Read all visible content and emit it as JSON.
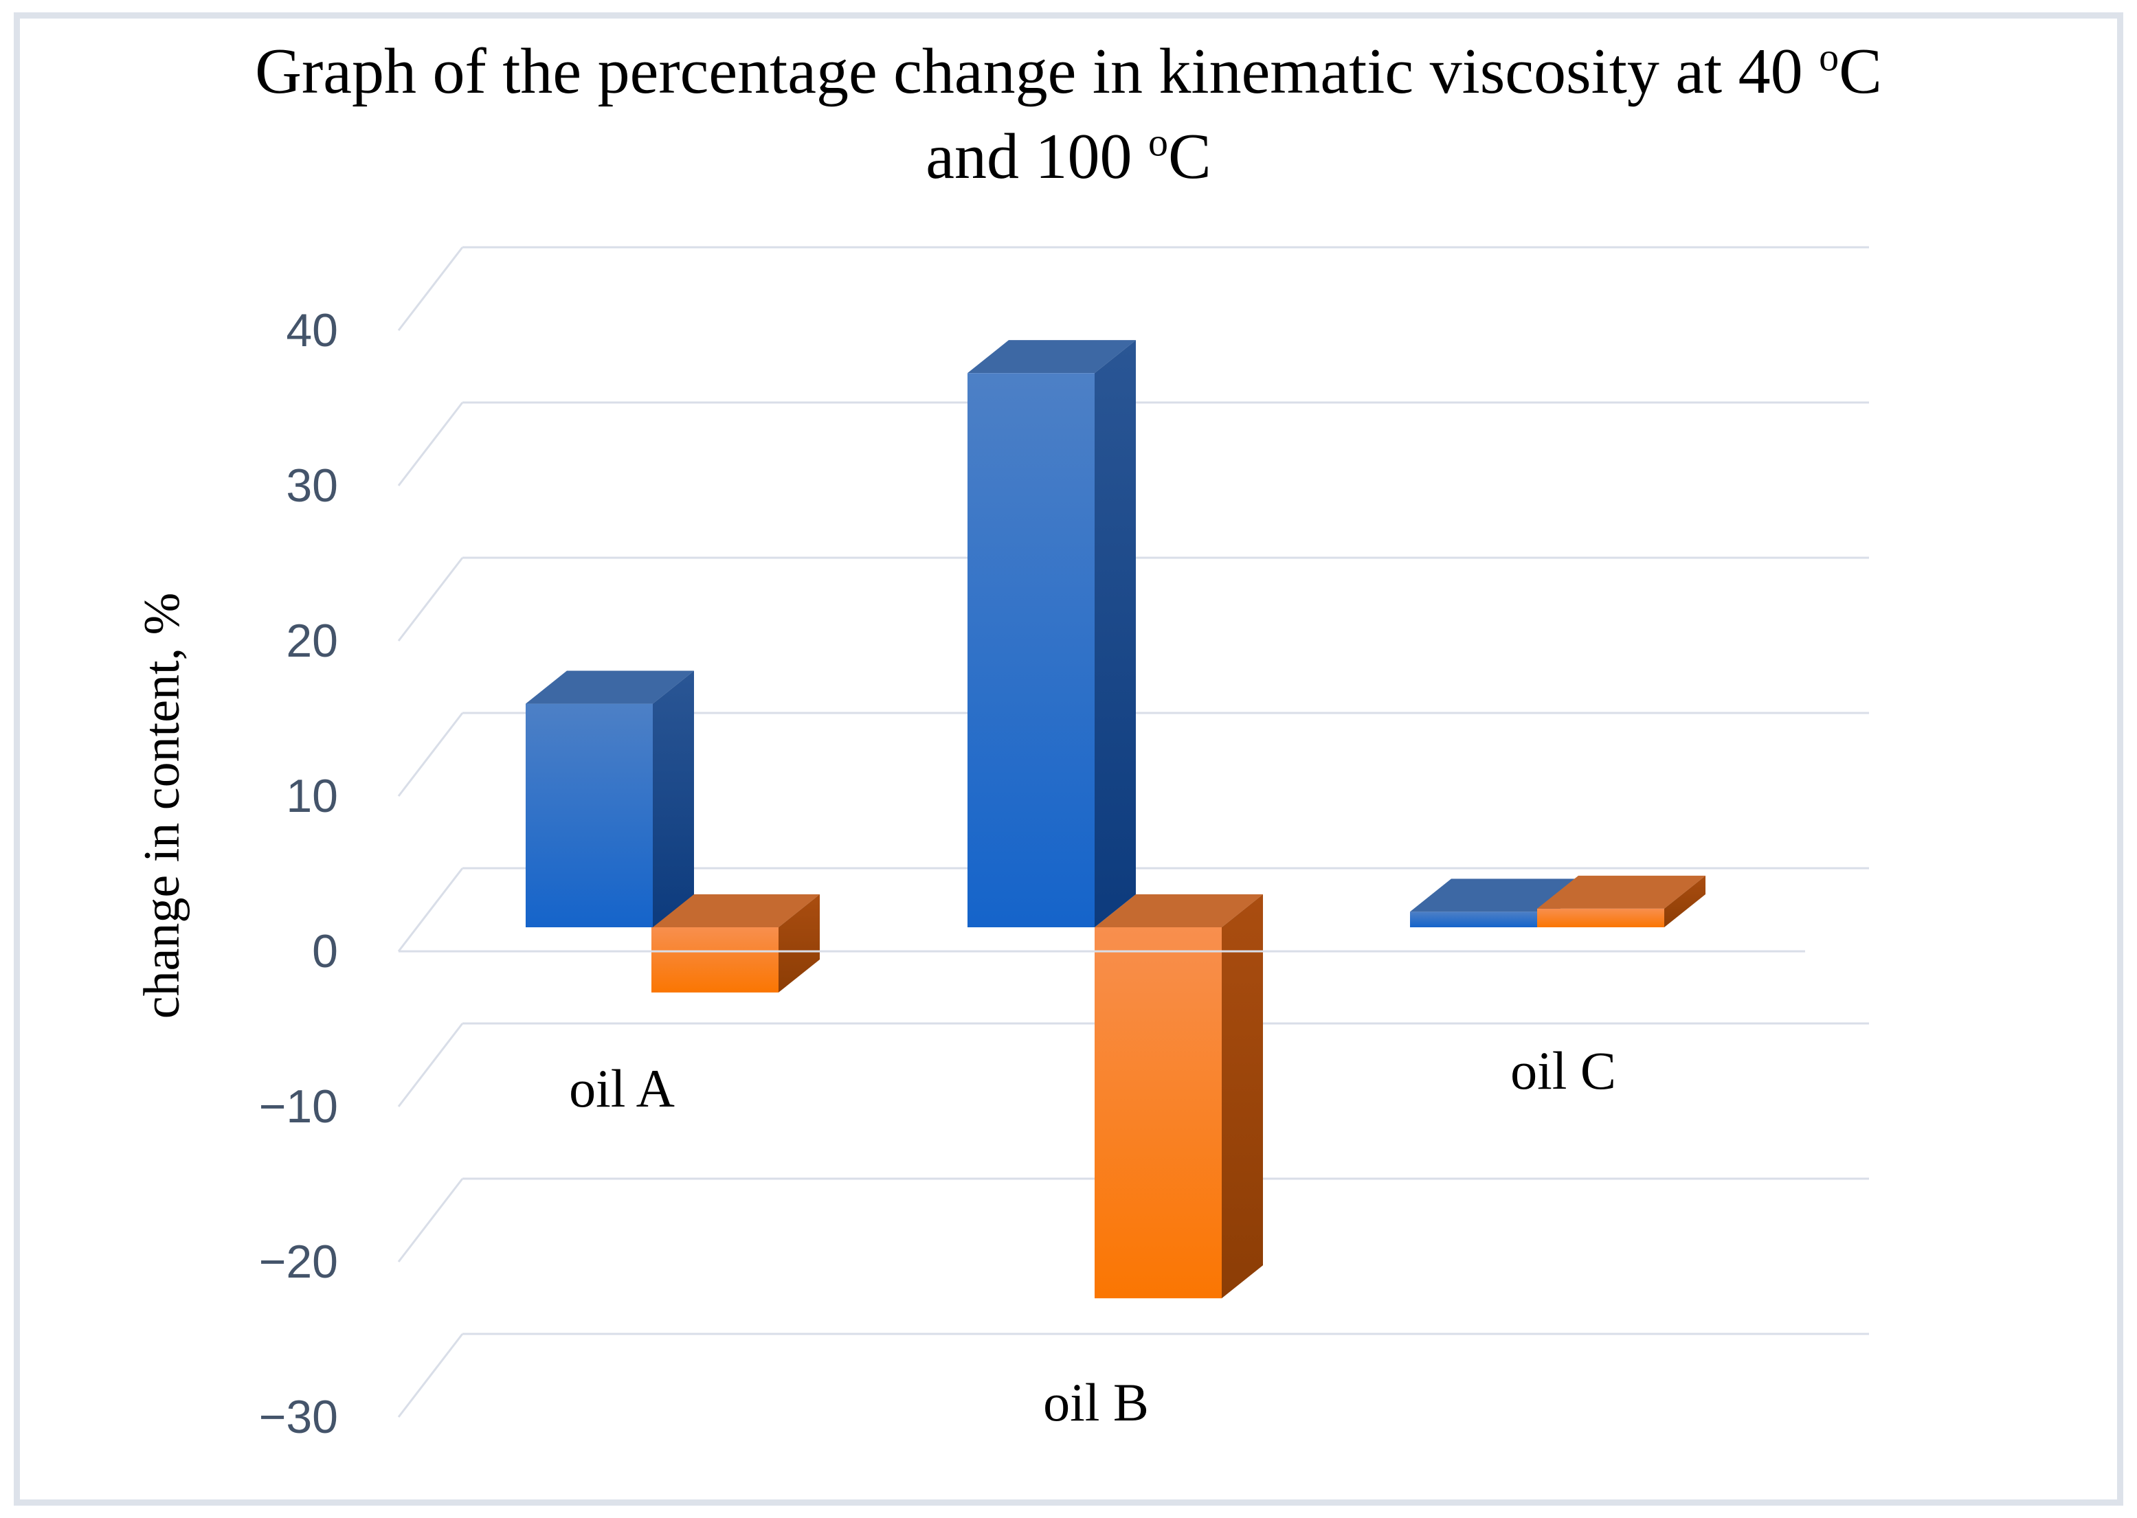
{
  "title_parts": {
    "line1": "Graph of the percentage change in kinematic viscosity at 40 ",
    "line1_sup": "o",
    "line1_end": "C",
    "line2": "and 100 ",
    "line2_sup": "o",
    "line2_end": "C"
  },
  "chart_data": {
    "type": "bar",
    "projection": "3d-column",
    "title": "Graph of the percentage change in kinematic viscosity at 40 oC and 100 oC",
    "ylabel": "change in content, %",
    "categories": [
      "oil A",
      "oil B",
      "oil C"
    ],
    "series": [
      {
        "name": "blue series",
        "color": "#1565c8",
        "values": [
          14.4,
          35.7,
          1.0
        ]
      },
      {
        "name": "orange series",
        "color": "#f97905",
        "values": [
          -4.2,
          -23.9,
          1.2
        ]
      }
    ],
    "ylim": [
      -30,
      40
    ],
    "ytick_step": 10,
    "ytick_labels": [
      "40",
      "30",
      "20",
      "10",
      "0",
      "−10",
      "−20",
      "−30"
    ],
    "ytick_values": [
      40,
      30,
      20,
      10,
      0,
      -10,
      -20,
      -30
    ],
    "grid": true,
    "legend": false,
    "colors": {
      "grid_line": "#d9dee8",
      "tick_text": "#44546a",
      "title_text": "#000000",
      "frame_border": "#dde2ea",
      "blue_front_top": "#4d80c6",
      "blue_front_bottom": "#1564ca",
      "blue_side_top": "#2a5695",
      "blue_side_bottom": "#0d3b7d",
      "blue_top_face": "#3d68a4",
      "orange_front_top": "#f88f4e",
      "orange_front_bottom": "#fa7602",
      "orange_side_top": "#aa4d10",
      "orange_side_bottom": "#8c3d05",
      "orange_top_face": "#c56a30"
    }
  }
}
